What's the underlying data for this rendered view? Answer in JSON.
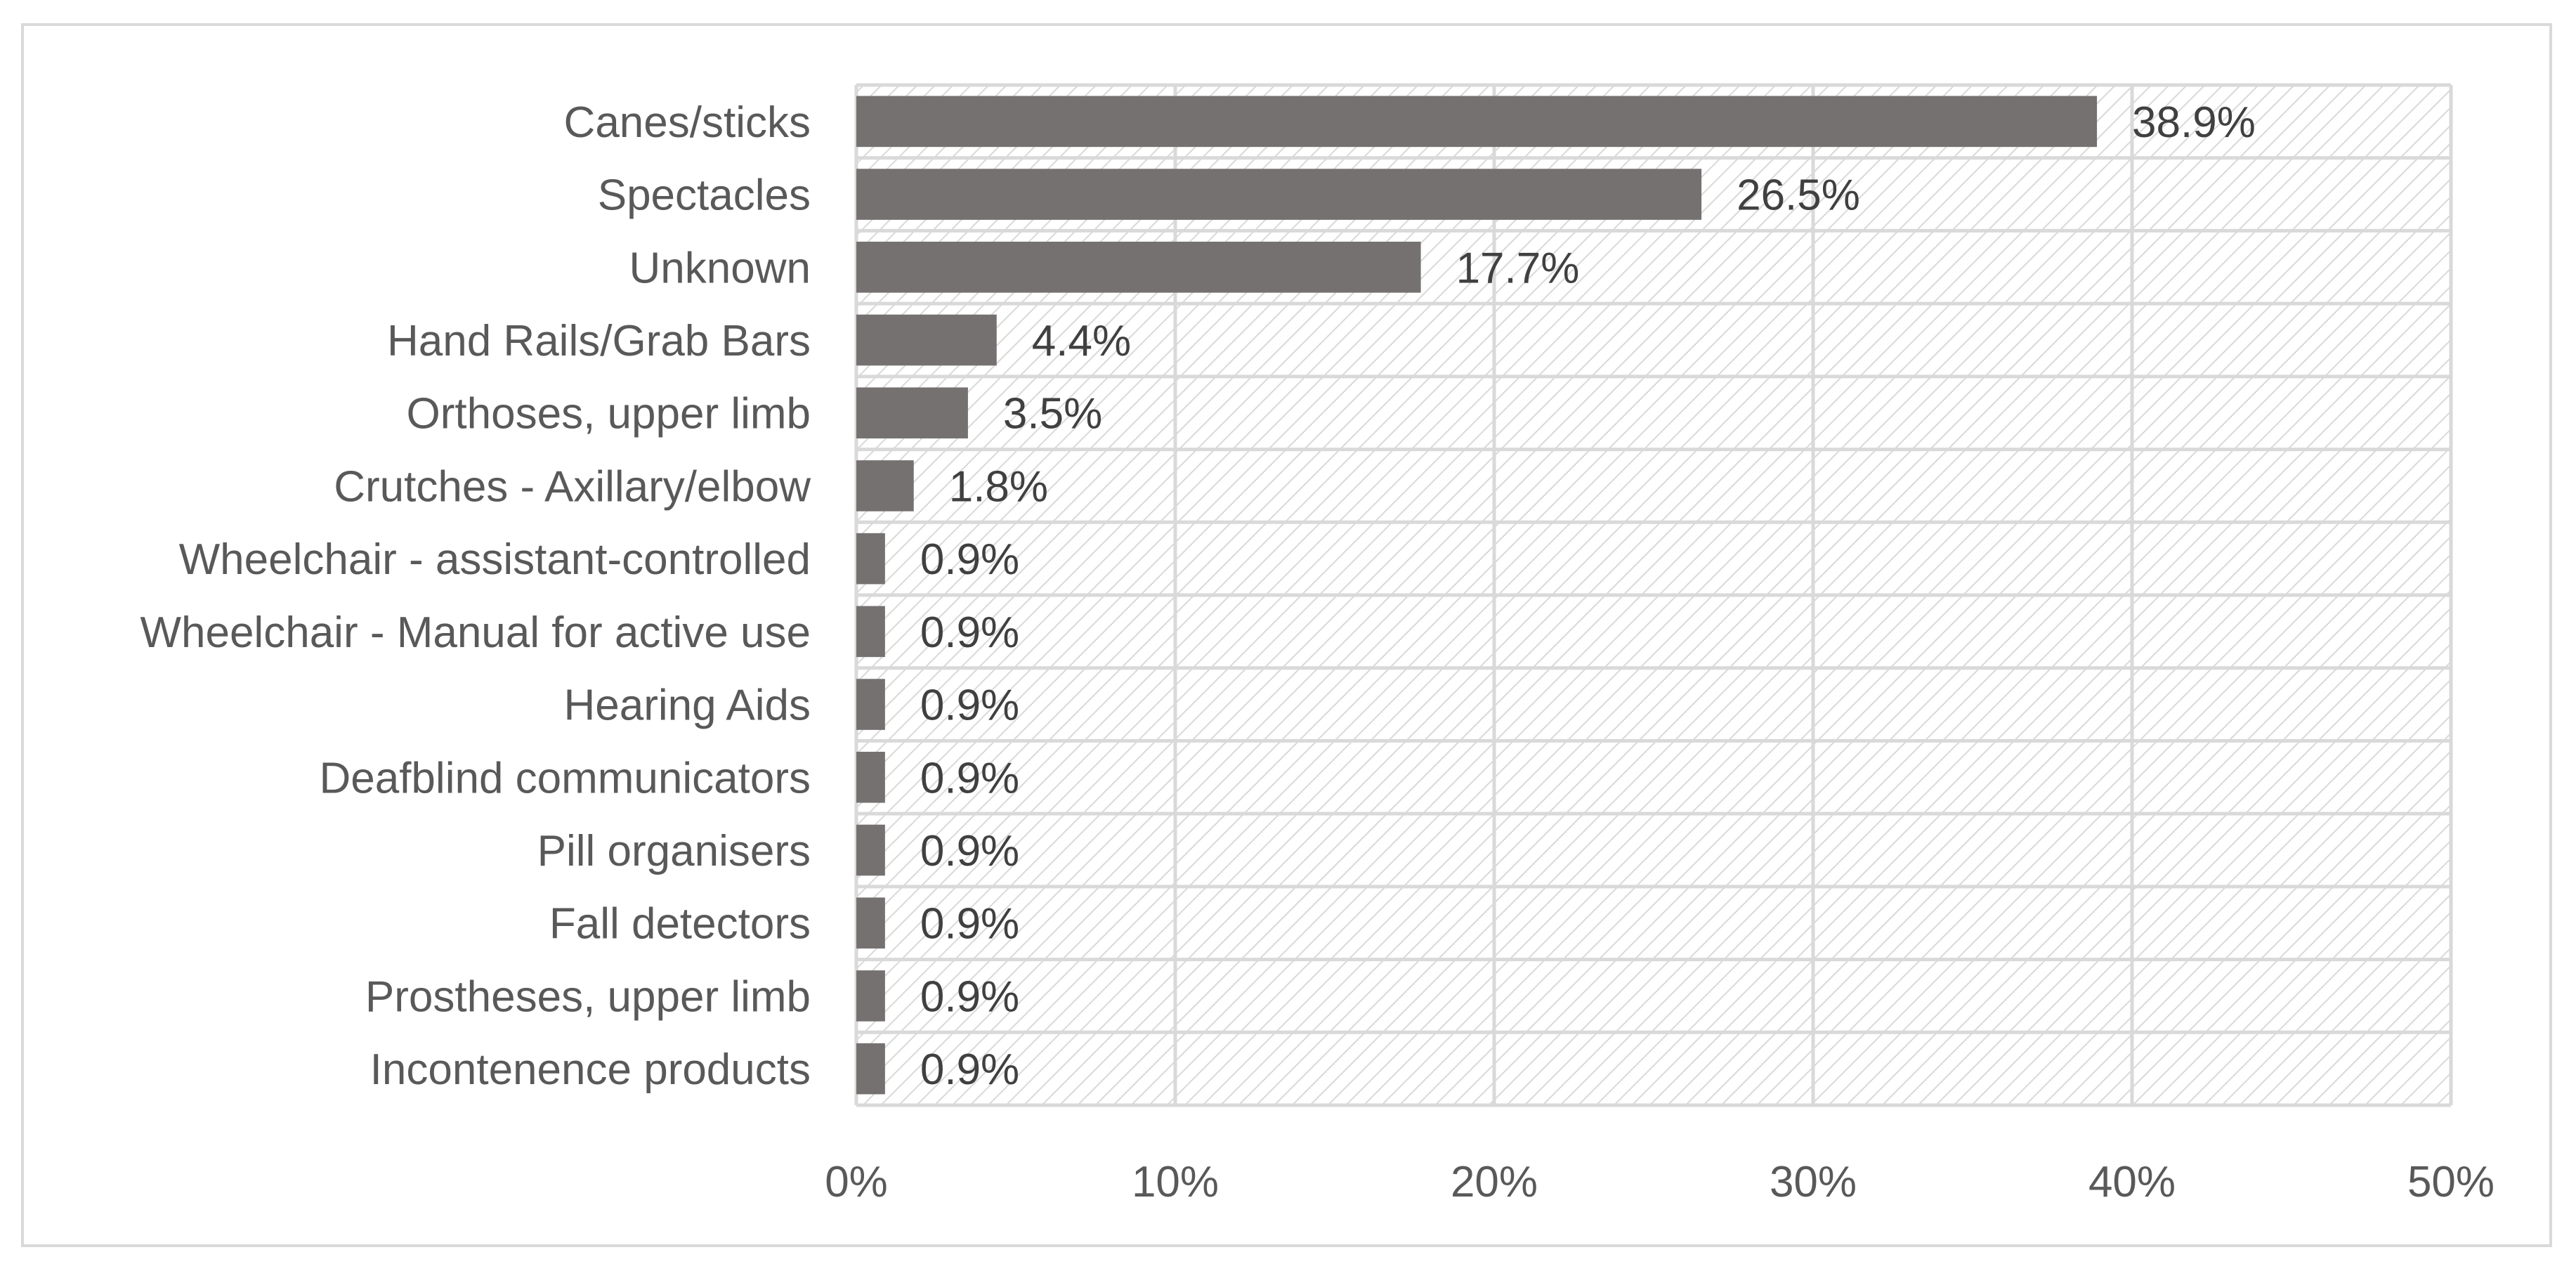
{
  "chart_data": {
    "type": "bar",
    "orientation": "horizontal",
    "categories": [
      "Canes/sticks",
      "Spectacles",
      "Unknown",
      "Hand Rails/Grab Bars",
      "Orthoses, upper limb",
      "Crutches - Axillary/elbow",
      "Wheelchair - assistant-controlled",
      "Wheelchair - Manual for active use",
      "Hearing Aids",
      "Deafblind communicators",
      "Pill organisers",
      "Fall detectors",
      "Prostheses, upper limb",
      "Incontenence products"
    ],
    "values": [
      38.9,
      26.5,
      17.7,
      4.4,
      3.5,
      1.8,
      0.9,
      0.9,
      0.9,
      0.9,
      0.9,
      0.9,
      0.9,
      0.9
    ],
    "data_labels": [
      "38.9%",
      "26.5%",
      "17.7%",
      "4.4%",
      "3.5%",
      "1.8%",
      "0.9%",
      "0.9%",
      "0.9%",
      "0.9%",
      "0.9%",
      "0.9%",
      "0.9%",
      "0.9%"
    ],
    "xlim": [
      0,
      50
    ],
    "x_ticks": [
      0,
      10,
      20,
      30,
      40,
      50
    ],
    "x_tick_labels": [
      "0%",
      "10%",
      "20%",
      "30%",
      "40%",
      "50%"
    ],
    "title": "",
    "xlabel": "",
    "ylabel": "",
    "grid": true,
    "legend": "none",
    "colors": {
      "bar": "#767171",
      "grid": "#d9d9d9",
      "hatch": "#d9d9d9",
      "text": "#595959",
      "label": "#404040"
    }
  }
}
